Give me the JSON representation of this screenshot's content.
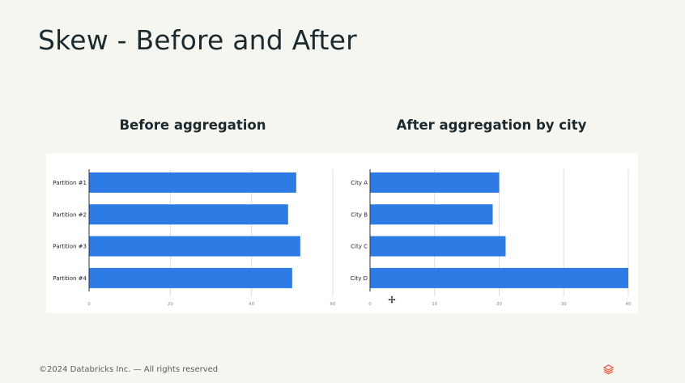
{
  "slide": {
    "title": "Skew - Before and After",
    "footer": "©2024 Databricks Inc. — All rights reserved"
  },
  "colors": {
    "bar": "#2f7be5",
    "grid": "#dddddd",
    "axis": "#333333",
    "logo": "#e8553a"
  },
  "icons": [
    "move-cursor-icon",
    "databricks-logo-icon"
  ],
  "chart_data": [
    {
      "type": "bar",
      "orientation": "horizontal",
      "title": "Before aggregation",
      "categories": [
        "Partition #1",
        "Partition #2",
        "Partition #3",
        "Partition #4"
      ],
      "values": [
        51,
        49,
        52,
        50
      ],
      "xlim": [
        0,
        60
      ],
      "xticks": [
        0,
        20,
        40,
        60
      ],
      "grid": true
    },
    {
      "type": "bar",
      "orientation": "horizontal",
      "title": "After aggregation by city",
      "categories": [
        "City A",
        "City B",
        "City C",
        "City D"
      ],
      "values": [
        20,
        19,
        21,
        40
      ],
      "xlim": [
        0,
        40
      ],
      "xticks": [
        0,
        10,
        20,
        30,
        40
      ],
      "grid": true
    }
  ]
}
